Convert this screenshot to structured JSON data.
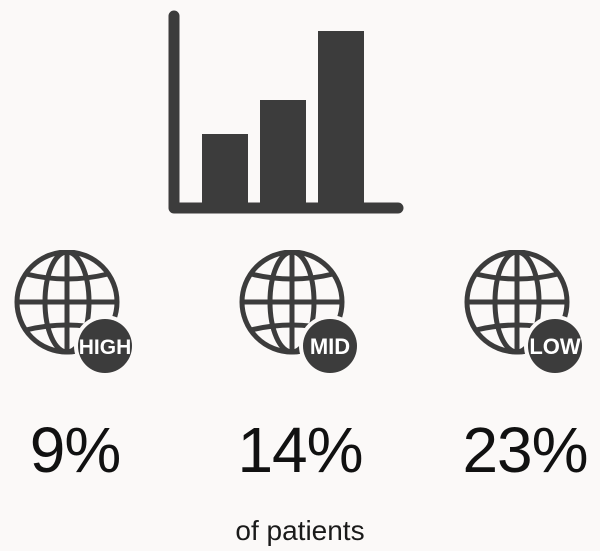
{
  "icons": {
    "top": "bar-chart-icon",
    "groups": "globe-icon"
  },
  "colors": {
    "icon": "#3c3c3c",
    "badge_text": "#ffffff",
    "background": "#fbf9f8"
  },
  "groups": [
    {
      "badge": "HIGH",
      "percent": "9%"
    },
    {
      "badge": "MID",
      "percent": "14%"
    },
    {
      "badge": "LOW",
      "percent": "23%"
    }
  ],
  "caption": "of patients"
}
